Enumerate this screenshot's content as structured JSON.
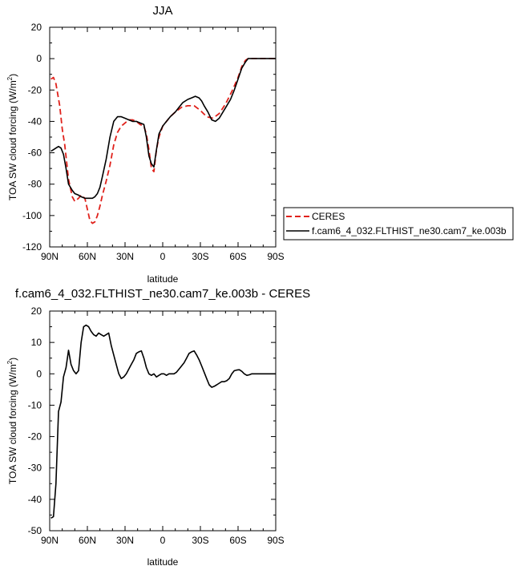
{
  "chart_data": [
    {
      "type": "line",
      "title": "JJA",
      "xlabel": "latitude",
      "ylabel": "TOA SW cloud forcing (W/m",
      "ylabel_sup": "2",
      "ylabel_tail": ")",
      "xlim": [
        90,
        -90
      ],
      "ylim": [
        -120,
        20
      ],
      "xticks": [
        90,
        60,
        30,
        0,
        -30,
        -60,
        -90
      ],
      "xtick_labels": [
        "90N",
        "60N",
        "30N",
        "0",
        "30S",
        "60S",
        "90S"
      ],
      "yticks": [
        20,
        0,
        -20,
        -40,
        -60,
        -80,
        -100,
        -120
      ],
      "ytick_labels": [
        "20",
        "0",
        "-20",
        "-40",
        "-60",
        "-80",
        "-100",
        "-120"
      ],
      "legend": "right",
      "series": [
        {
          "name": "CERES",
          "color": "#e0211b",
          "dash": "dashed",
          "x": [
            89,
            87,
            85,
            82,
            80,
            78,
            75,
            72,
            70,
            67,
            65,
            62,
            60,
            58,
            56,
            54,
            52,
            50,
            48,
            45,
            42,
            39,
            36,
            33,
            30,
            27,
            24,
            21,
            18,
            15,
            13,
            11,
            9,
            7,
            5,
            3,
            0,
            -3,
            -6,
            -10,
            -15,
            -20,
            -25,
            -30,
            -35,
            -40,
            -45,
            -50,
            -55,
            -60,
            -63,
            -66,
            -68,
            -70,
            -75,
            -80,
            -85,
            -90
          ],
          "y": [
            -13,
            -12,
            -16,
            -30,
            -45,
            -55,
            -77,
            -88,
            -91,
            -89,
            -87,
            -89,
            -96,
            -103,
            -105,
            -104,
            -100,
            -94,
            -87,
            -78,
            -68,
            -55,
            -47,
            -43,
            -41,
            -39,
            -39,
            -40,
            -42,
            -43,
            -48,
            -58,
            -70,
            -72,
            -58,
            -50,
            -43,
            -40,
            -37,
            -34,
            -31,
            -30,
            -30,
            -33,
            -37,
            -38,
            -35,
            -29,
            -21,
            -12,
            -5,
            -1,
            0,
            0,
            0,
            0,
            0,
            0
          ]
        },
        {
          "name": "f.cam6_4_032.FLTHIST_ne30.cam7_ke.003b",
          "color": "#000000",
          "dash": "solid",
          "x": [
            89,
            87,
            85,
            83,
            81,
            79,
            77,
            75,
            72,
            70,
            67,
            65,
            62,
            60,
            58,
            56,
            54,
            52,
            50,
            48,
            45,
            42,
            39,
            36,
            33,
            30,
            27,
            24,
            21,
            18,
            15,
            13,
            11,
            9,
            7,
            5,
            3,
            0,
            -3,
            -6,
            -10,
            -13,
            -16,
            -20,
            -23,
            -26,
            -29,
            -31,
            -33,
            -36,
            -39,
            -42,
            -45,
            -48,
            -51,
            -54,
            -57,
            -60,
            -63,
            -66,
            -68,
            -70,
            -75,
            -80,
            -85,
            -90
          ],
          "y": [
            -59,
            -58,
            -57,
            -56,
            -57,
            -61,
            -70,
            -80,
            -84,
            -86,
            -87,
            -88,
            -89,
            -89,
            -89,
            -89,
            -88,
            -86,
            -82,
            -75,
            -64,
            -50,
            -40,
            -37,
            -37,
            -38,
            -39,
            -40,
            -40,
            -41,
            -42,
            -50,
            -62,
            -67,
            -69,
            -58,
            -48,
            -43,
            -40,
            -37,
            -34,
            -31,
            -28,
            -26,
            -25,
            -24,
            -25,
            -27,
            -30,
            -34,
            -39,
            -40,
            -38,
            -34,
            -30,
            -26,
            -20,
            -13,
            -6,
            -2,
            0,
            0,
            0,
            0,
            0,
            0
          ]
        }
      ]
    },
    {
      "type": "line",
      "title": "f.cam6_4_032.FLTHIST_ne30.cam7_ke.003b - CERES",
      "xlabel": "latitude",
      "ylabel": "TOA SW cloud forcing (W/m",
      "ylabel_sup": "2",
      "ylabel_tail": ")",
      "xlim": [
        90,
        -90
      ],
      "ylim": [
        -50,
        20
      ],
      "xticks": [
        90,
        60,
        30,
        0,
        -30,
        -60,
        -90
      ],
      "xtick_labels": [
        "90N",
        "60N",
        "30N",
        "0",
        "30S",
        "60S",
        "90S"
      ],
      "yticks": [
        20,
        10,
        0,
        -10,
        -20,
        -30,
        -40,
        -50
      ],
      "ytick_labels": [
        "20",
        "10",
        "0",
        "-10",
        "-20",
        "-30",
        "-40",
        "-50"
      ],
      "series": [
        {
          "color": "#000000",
          "dash": "solid",
          "x": [
            89,
            87,
            85,
            83,
            81,
            79,
            77,
            75,
            73,
            71,
            69,
            67,
            65,
            63,
            61,
            59,
            57,
            55,
            53,
            51,
            49,
            47,
            45,
            43,
            41,
            39,
            37,
            35,
            33,
            31,
            29,
            27,
            25,
            23,
            21,
            19,
            17,
            15,
            13,
            11,
            9,
            7,
            5,
            3,
            1,
            -1,
            -3,
            -5,
            -7,
            -9,
            -11,
            -13,
            -15,
            -17,
            -19,
            -21,
            -23,
            -25,
            -27,
            -29,
            -31,
            -33,
            -35,
            -37,
            -39,
            -41,
            -43,
            -45,
            -47,
            -49,
            -51,
            -53,
            -55,
            -57,
            -59,
            -61,
            -63,
            -65,
            -67,
            -69,
            -71,
            -73,
            -75,
            -80,
            -85,
            -90
          ],
          "y": [
            -46,
            -45.5,
            -35,
            -12,
            -9,
            -1,
            2,
            7.5,
            3,
            1,
            0,
            1,
            10,
            15,
            15.5,
            15,
            13.5,
            12.5,
            12,
            13,
            12.5,
            12,
            12.5,
            13,
            9,
            6,
            3,
            0,
            -1.5,
            -1,
            0,
            1.5,
            3,
            4.5,
            6.5,
            7,
            7.3,
            5,
            2,
            0,
            -0.5,
            0,
            -1,
            -0.5,
            0,
            0,
            -0.5,
            0,
            0,
            0,
            0.5,
            1.5,
            2.5,
            3.5,
            5,
            6.5,
            7,
            7.3,
            6,
            4.5,
            2.5,
            0.5,
            -1.5,
            -3.5,
            -4.3,
            -4,
            -3.5,
            -3,
            -2.5,
            -2.5,
            -2.2,
            -1.5,
            0,
            1,
            1.2,
            1.3,
            0.8,
            0,
            -0.5,
            -0.3,
            0,
            0,
            0,
            0,
            0,
            0
          ]
        }
      ]
    }
  ]
}
